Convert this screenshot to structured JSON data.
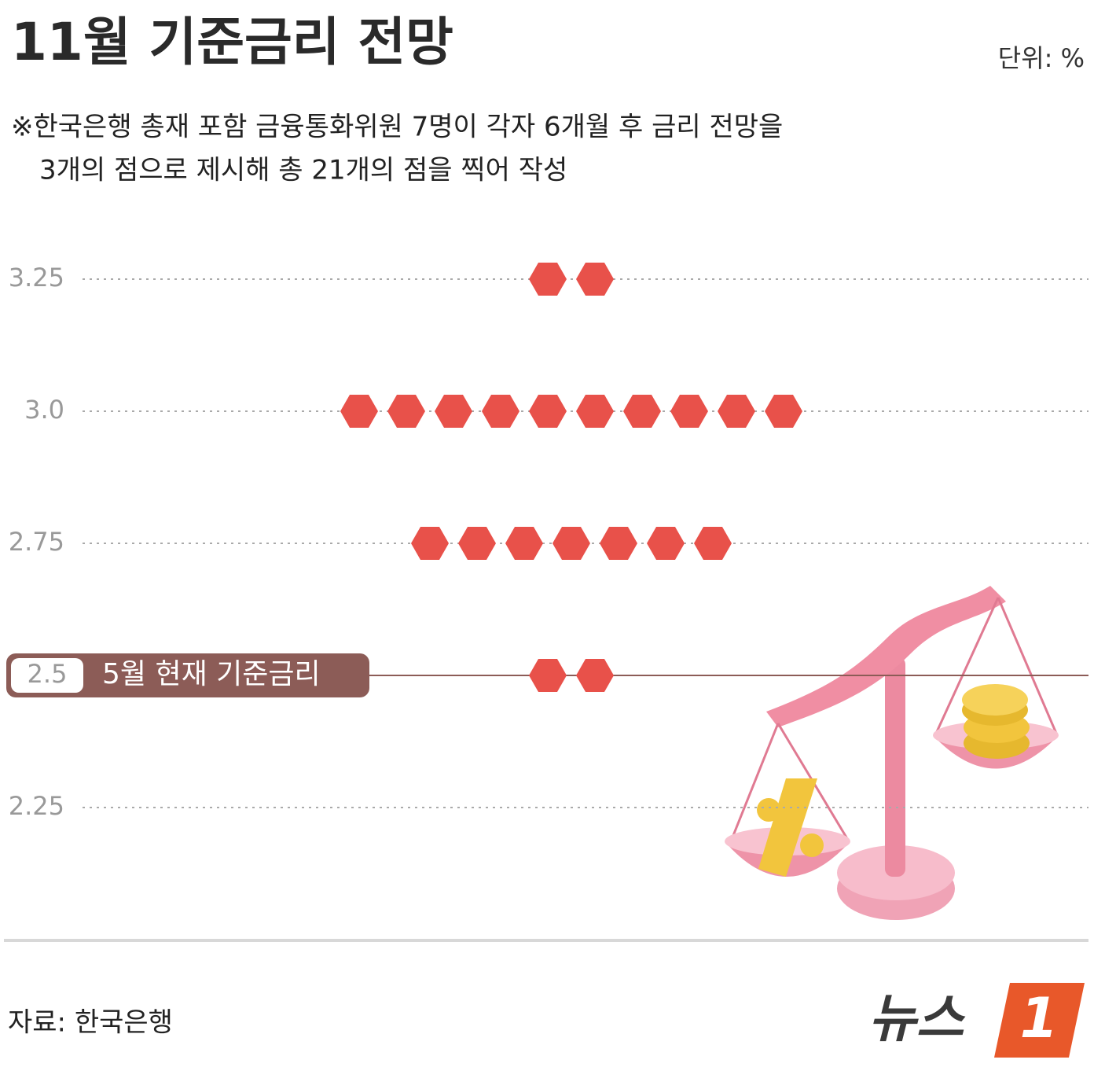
{
  "chart_data": {
    "type": "dot",
    "title": "11월 기준금리 전망",
    "unit": "단위: %",
    "note": [
      "※한국은행 총재 포함 금융통화위원 7명이 각자 6개월 후 금리 전망을",
      "3개의 점으로 제시해 총 21개의 점을 찍어 작성"
    ],
    "values": [
      3.25,
      3.25,
      3,
      3,
      3,
      3,
      3,
      3,
      3,
      3,
      3,
      3,
      2.75,
      2.75,
      2.75,
      2.75,
      2.75,
      2.75,
      2.75,
      2.5,
      2.5
    ],
    "color": "#e8514a",
    "ylim": [
      2,
      3.5
    ],
    "yticks": [
      3.25,
      {
        "value": 3,
        "label": "3.0"
      },
      2.75,
      2.5,
      2.25
    ],
    "grid": true,
    "annotation": {
      "text": "5월 현재 기준금리",
      "y": 2.5,
      "color": "#8c5c57"
    },
    "source": "자료: 한국은행",
    "logo": {
      "text": "뉴스",
      "mark": "1"
    }
  }
}
